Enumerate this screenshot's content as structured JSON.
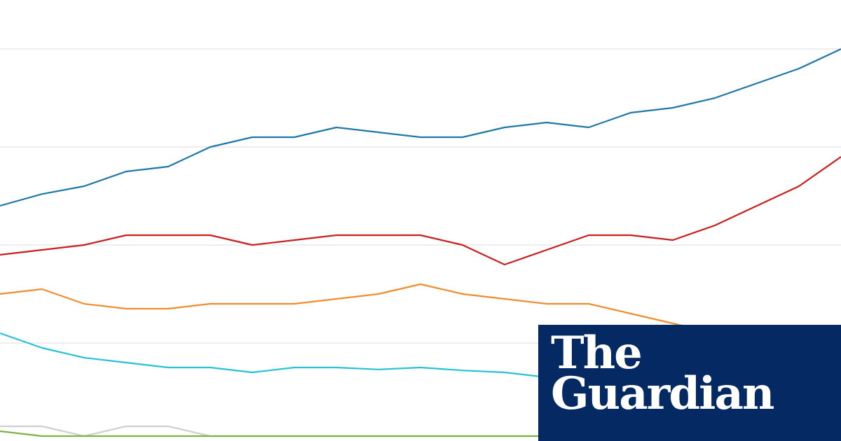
{
  "chart_data": {
    "type": "line",
    "title": "",
    "xlabel": "",
    "ylabel": "",
    "x": [
      0,
      5,
      10,
      15,
      20,
      25,
      30,
      35,
      40,
      45,
      50,
      55,
      60,
      65,
      70,
      75,
      80,
      85,
      90,
      95,
      100
    ],
    "ylim": [
      0,
      45
    ],
    "grid": true,
    "gridlines_y": [
      10,
      20,
      30,
      40
    ],
    "legend": "none",
    "series": [
      {
        "color": "#1f77a8",
        "values": [
          24,
          25.2,
          26,
          27.5,
          28,
          30,
          31,
          31,
          32,
          31.5,
          31,
          31,
          32,
          32.5,
          32,
          33.5,
          34,
          35,
          36.5,
          38,
          40
        ]
      },
      {
        "color": "#c81e1e",
        "values": [
          19,
          19.5,
          20,
          21,
          21,
          21,
          20,
          20.5,
          21,
          21,
          21,
          20,
          18,
          19.5,
          21,
          21,
          20.5,
          22,
          24,
          26,
          29
        ]
      },
      {
        "color": "#f08c2e",
        "values": [
          15,
          15.5,
          14,
          13.5,
          13.5,
          14,
          14,
          14,
          14.5,
          15,
          16,
          15,
          14.5,
          14,
          14,
          13,
          12,
          11,
          10,
          9.5,
          9
        ]
      },
      {
        "color": "#26c1d6",
        "values": [
          11,
          9.5,
          8.5,
          8,
          7.5,
          7.5,
          7,
          7.5,
          7.5,
          7.3,
          7.5,
          7.2,
          7,
          6.5,
          6,
          5.5,
          5,
          5,
          5,
          4.5,
          4.5
        ]
      },
      {
        "color": "#cfcfcf",
        "values": [
          1.5,
          1.5,
          0.5,
          1.5,
          1.5,
          0.5,
          0.5,
          0.5,
          0.5,
          0.5,
          0.5,
          0.5,
          0.5,
          0.5,
          0.5,
          0.5,
          0.5,
          0.5,
          0.5,
          0.5,
          0.5
        ]
      },
      {
        "color": "#7cb342",
        "values": [
          1,
          0.5,
          0.5,
          0.5,
          0.5,
          0.5,
          0.5,
          0.5,
          0.5,
          0.5,
          0.5,
          0.5,
          0.5,
          0.5,
          0.5,
          0.5,
          0.5,
          0.5,
          0.5,
          0.5,
          0.5
        ]
      }
    ]
  },
  "logo": {
    "line1": "The",
    "line2": "Guardian",
    "background": "#052962",
    "text_color": "#ffffff"
  }
}
